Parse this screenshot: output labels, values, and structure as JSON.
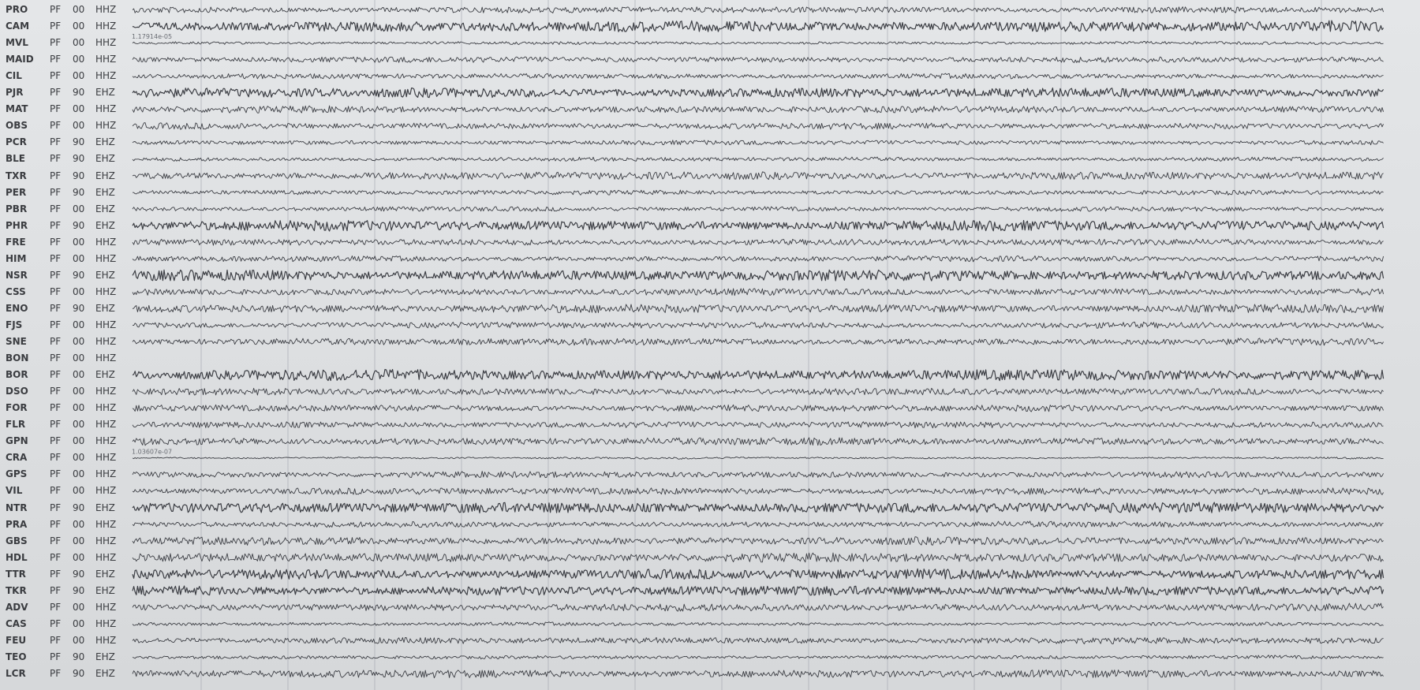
{
  "stations": [
    {
      "station": "PRO",
      "network": "PF",
      "location": "00",
      "channel": "HHZ",
      "scale": "",
      "amplitude": 0.55
    },
    {
      "station": "CAM",
      "network": "PF",
      "location": "00",
      "channel": "HHZ",
      "scale": "",
      "amplitude": 0.95
    },
    {
      "station": "MVL",
      "network": "PF",
      "location": "00",
      "channel": "HHZ",
      "scale": "1.17914e-05",
      "amplitude": 0.25
    },
    {
      "station": "MAID",
      "network": "PF",
      "location": "00",
      "channel": "HHZ",
      "scale": "",
      "amplitude": 0.5
    },
    {
      "station": "CIL",
      "network": "PF",
      "location": "00",
      "channel": "HHZ",
      "scale": "",
      "amplitude": 0.45
    },
    {
      "station": "PJR",
      "network": "PF",
      "location": "90",
      "channel": "EHZ",
      "scale": "",
      "amplitude": 0.85
    },
    {
      "station": "MAT",
      "network": "PF",
      "location": "00",
      "channel": "HHZ",
      "scale": "",
      "amplitude": 0.6
    },
    {
      "station": "OBS",
      "network": "PF",
      "location": "00",
      "channel": "HHZ",
      "scale": "",
      "amplitude": 0.55
    },
    {
      "station": "PCR",
      "network": "PF",
      "location": "90",
      "channel": "EHZ",
      "scale": "",
      "amplitude": 0.4
    },
    {
      "station": "BLE",
      "network": "PF",
      "location": "90",
      "channel": "EHZ",
      "scale": "",
      "amplitude": 0.35
    },
    {
      "station": "TXR",
      "network": "PF",
      "location": "90",
      "channel": "EHZ",
      "scale": "",
      "amplitude": 0.7
    },
    {
      "station": "PER",
      "network": "PF",
      "location": "90",
      "channel": "EHZ",
      "scale": "",
      "amplitude": 0.4
    },
    {
      "station": "PBR",
      "network": "PF",
      "location": "00",
      "channel": "EHZ",
      "scale": "",
      "amplitude": 0.4
    },
    {
      "station": "PHR",
      "network": "PF",
      "location": "90",
      "channel": "EHZ",
      "scale": "",
      "amplitude": 0.9
    },
    {
      "station": "FRE",
      "network": "PF",
      "location": "00",
      "channel": "HHZ",
      "scale": "",
      "amplitude": 0.55
    },
    {
      "station": "HIM",
      "network": "PF",
      "location": "00",
      "channel": "HHZ",
      "scale": "",
      "amplitude": 0.5
    },
    {
      "station": "NSR",
      "network": "PF",
      "location": "90",
      "channel": "EHZ",
      "scale": "",
      "amplitude": 0.95
    },
    {
      "station": "CSS",
      "network": "PF",
      "location": "00",
      "channel": "HHZ",
      "scale": "",
      "amplitude": 0.6
    },
    {
      "station": "ENO",
      "network": "PF",
      "location": "90",
      "channel": "EHZ",
      "scale": "",
      "amplitude": 0.75
    },
    {
      "station": "FJS",
      "network": "PF",
      "location": "00",
      "channel": "HHZ",
      "scale": "",
      "amplitude": 0.55
    },
    {
      "station": "SNE",
      "network": "PF",
      "location": "00",
      "channel": "HHZ",
      "scale": "",
      "amplitude": 0.6
    },
    {
      "station": "BON",
      "network": "PF",
      "location": "00",
      "channel": "HHZ",
      "scale": "",
      "amplitude": 0
    },
    {
      "station": "BOR",
      "network": "PF",
      "location": "00",
      "channel": "EHZ",
      "scale": "",
      "amplitude": 0.95
    },
    {
      "station": "DSO",
      "network": "PF",
      "location": "00",
      "channel": "HHZ",
      "scale": "",
      "amplitude": 0.6
    },
    {
      "station": "FOR",
      "network": "PF",
      "location": "00",
      "channel": "HHZ",
      "scale": "",
      "amplitude": 0.6
    },
    {
      "station": "FLR",
      "network": "PF",
      "location": "00",
      "channel": "HHZ",
      "scale": "",
      "amplitude": 0.55
    },
    {
      "station": "GPN",
      "network": "PF",
      "location": "00",
      "channel": "HHZ",
      "scale": "",
      "amplitude": 0.65
    },
    {
      "station": "CRA",
      "network": "PF",
      "location": "00",
      "channel": "HHZ",
      "scale": "1.03607e-07",
      "amplitude": 0.15
    },
    {
      "station": "GPS",
      "network": "PF",
      "location": "00",
      "channel": "HHZ",
      "scale": "",
      "amplitude": 0.55
    },
    {
      "station": "VIL",
      "network": "PF",
      "location": "00",
      "channel": "HHZ",
      "scale": "",
      "amplitude": 0.6
    },
    {
      "station": "NTR",
      "network": "PF",
      "location": "90",
      "channel": "EHZ",
      "scale": "",
      "amplitude": 0.95
    },
    {
      "station": "PRA",
      "network": "PF",
      "location": "00",
      "channel": "HHZ",
      "scale": "",
      "amplitude": 0.5
    },
    {
      "station": "GBS",
      "network": "PF",
      "location": "00",
      "channel": "HHZ",
      "scale": "",
      "amplitude": 0.7
    },
    {
      "station": "HDL",
      "network": "PF",
      "location": "00",
      "channel": "HHZ",
      "scale": "",
      "amplitude": 0.8
    },
    {
      "station": "TTR",
      "network": "PF",
      "location": "90",
      "channel": "EHZ",
      "scale": "",
      "amplitude": 0.9
    },
    {
      "station": "TKR",
      "network": "PF",
      "location": "90",
      "channel": "EHZ",
      "scale": "",
      "amplitude": 0.85
    },
    {
      "station": "ADV",
      "network": "PF",
      "location": "00",
      "channel": "HHZ",
      "scale": "",
      "amplitude": 0.65
    },
    {
      "station": "CAS",
      "network": "PF",
      "location": "00",
      "channel": "HHZ",
      "scale": "",
      "amplitude": 0.3
    },
    {
      "station": "FEU",
      "network": "PF",
      "location": "00",
      "channel": "HHZ",
      "scale": "",
      "amplitude": 0.55
    },
    {
      "station": "TEO",
      "network": "PF",
      "location": "90",
      "channel": "EHZ",
      "scale": "",
      "amplitude": 0.3
    },
    {
      "station": "LCR",
      "network": "PF",
      "location": "90",
      "channel": "EHZ",
      "scale": "",
      "amplitude": 0.7
    }
  ],
  "colors": {
    "trace": "#3c3e44",
    "gridline": "#a8abb4",
    "background": "#dcdee0"
  }
}
